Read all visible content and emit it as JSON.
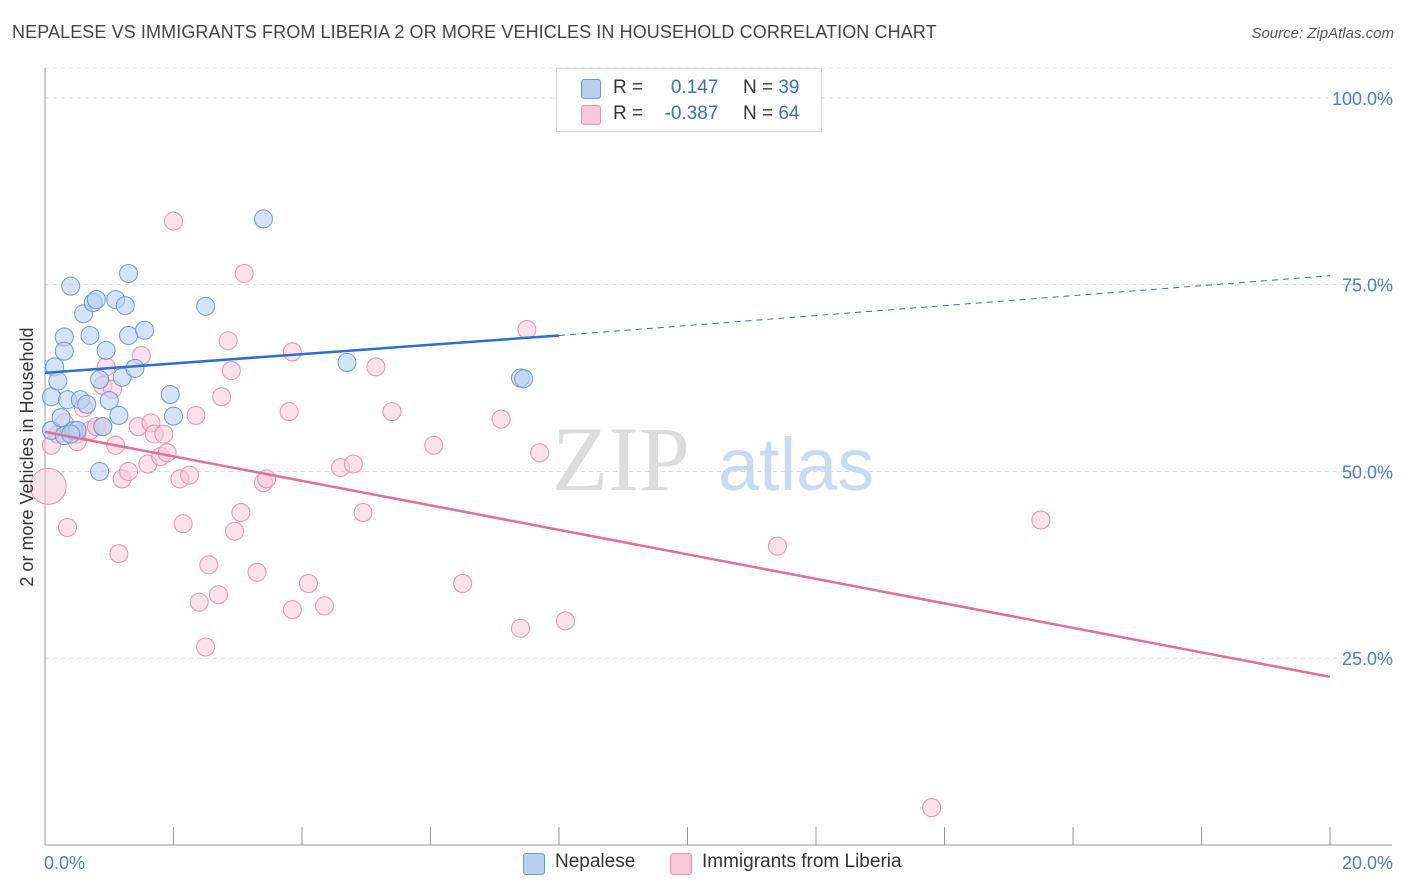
{
  "title": "NEPALESE VS IMMIGRANTS FROM LIBERIA 2 OR MORE VEHICLES IN HOUSEHOLD CORRELATION CHART",
  "source": "Source: ZipAtlas.com",
  "watermark": {
    "zip": "ZIP",
    "atlas": "atlas"
  },
  "legend_top": [
    {
      "r_label": "R =",
      "r_value": "0.147",
      "n_label": "N =",
      "n_value": "39"
    },
    {
      "r_label": "R =",
      "r_value": "-0.387",
      "n_label": "N =",
      "n_value": "64"
    }
  ],
  "legend_bottom": [
    "Nepalese",
    "Immigrants from Liberia"
  ],
  "colors": {
    "nepalese_fill": "#b8d0f0",
    "nepalese_stroke": "#6a9ad8",
    "nepalese_line": "#2e6fcc",
    "liberia_fill": "#f8c8d8",
    "liberia_stroke": "#e890b0",
    "liberia_line": "#e0709a",
    "tick_text": "#4a7fc7",
    "grid": "#d8d8d8"
  },
  "chart_data": {
    "type": "scatter",
    "title": "NEPALESE VS IMMIGRANTS FROM LIBERIA 2 OR MORE VEHICLES IN HOUSEHOLD CORRELATION CHART",
    "xlabel": "",
    "ylabel": "2 or more Vehicles in Household",
    "xlim": [
      0,
      20
    ],
    "ylim": [
      0,
      104
    ],
    "x_tick_labels": [
      "0.0%",
      "20.0%"
    ],
    "y_ticks": [
      25,
      50,
      75,
      100
    ],
    "y_tick_labels": [
      "25.0%",
      "50.0%",
      "75.0%",
      "100.0%"
    ],
    "grid": "horizontal dashed",
    "legend_placement": "top-center",
    "series": [
      {
        "name": "Nepalese",
        "r": 0.147,
        "n": 39,
        "trend": {
          "x": [
            0.0,
            8.0
          ],
          "y": [
            63.2,
            68.2
          ],
          "extended_to": [
            20.0,
            76.2
          ]
        },
        "points": [
          [
            0.1,
            55.5
          ],
          [
            0.1,
            60.0
          ],
          [
            0.15,
            64.0
          ],
          [
            0.2,
            62.1
          ],
          [
            0.25,
            57.2
          ],
          [
            0.3,
            54.8
          ],
          [
            0.3,
            68.0
          ],
          [
            0.3,
            66.1
          ],
          [
            0.35,
            59.6
          ],
          [
            0.4,
            74.8
          ],
          [
            0.45,
            55.5
          ],
          [
            0.5,
            55.5
          ],
          [
            0.55,
            59.6
          ],
          [
            0.6,
            71.1
          ],
          [
            0.65,
            59.0
          ],
          [
            0.7,
            68.2
          ],
          [
            0.75,
            72.6
          ],
          [
            0.8,
            73.0
          ],
          [
            0.85,
            62.3
          ],
          [
            0.85,
            50.0
          ],
          [
            0.9,
            56.0
          ],
          [
            0.95,
            66.2
          ],
          [
            1.0,
            59.5
          ],
          [
            1.1,
            73.0
          ],
          [
            1.15,
            57.5
          ],
          [
            1.2,
            62.6
          ],
          [
            1.25,
            72.2
          ],
          [
            1.3,
            68.2
          ],
          [
            1.3,
            76.5
          ],
          [
            1.4,
            63.8
          ],
          [
            1.55,
            68.9
          ],
          [
            1.95,
            60.3
          ],
          [
            2.0,
            57.4
          ],
          [
            2.5,
            72.1
          ],
          [
            3.4,
            83.8
          ],
          [
            4.7,
            64.6
          ],
          [
            7.4,
            62.5
          ],
          [
            7.45,
            62.4
          ],
          [
            0.4,
            55.0
          ]
        ]
      },
      {
        "name": "Immigrants from Liberia",
        "r": -0.387,
        "n": 64,
        "trend": {
          "x": [
            0.0,
            20.0
          ],
          "y": [
            55.3,
            22.5
          ]
        },
        "points": [
          [
            0.05,
            48.0
          ],
          [
            0.1,
            53.5
          ],
          [
            0.2,
            55.0
          ],
          [
            0.3,
            56.5
          ],
          [
            0.35,
            42.5
          ],
          [
            0.5,
            55.0
          ],
          [
            0.5,
            54.0
          ],
          [
            0.6,
            58.5
          ],
          [
            0.7,
            55.5
          ],
          [
            0.8,
            56.0
          ],
          [
            0.9,
            61.5
          ],
          [
            0.9,
            56.0
          ],
          [
            0.95,
            64.0
          ],
          [
            1.05,
            61.0
          ],
          [
            1.1,
            53.5
          ],
          [
            1.15,
            39.0
          ],
          [
            1.2,
            49.0
          ],
          [
            1.3,
            50.0
          ],
          [
            1.45,
            56.0
          ],
          [
            1.5,
            65.5
          ],
          [
            1.6,
            51.0
          ],
          [
            1.65,
            56.5
          ],
          [
            1.7,
            55.0
          ],
          [
            1.8,
            52.0
          ],
          [
            1.85,
            55.0
          ],
          [
            1.9,
            52.5
          ],
          [
            2.0,
            83.5
          ],
          [
            2.1,
            49.0
          ],
          [
            2.15,
            43.0
          ],
          [
            2.25,
            49.5
          ],
          [
            2.35,
            57.5
          ],
          [
            2.4,
            32.5
          ],
          [
            2.5,
            26.5
          ],
          [
            2.55,
            37.5
          ],
          [
            2.7,
            33.5
          ],
          [
            2.75,
            60.0
          ],
          [
            2.85,
            67.5
          ],
          [
            2.9,
            63.5
          ],
          [
            2.95,
            42.0
          ],
          [
            3.05,
            44.5
          ],
          [
            3.1,
            76.5
          ],
          [
            3.3,
            36.5
          ],
          [
            3.4,
            48.5
          ],
          [
            3.45,
            49.0
          ],
          [
            3.8,
            58.0
          ],
          [
            3.85,
            66.0
          ],
          [
            3.85,
            31.5
          ],
          [
            4.1,
            35.0
          ],
          [
            4.35,
            32.0
          ],
          [
            4.6,
            50.5
          ],
          [
            4.8,
            51.0
          ],
          [
            4.95,
            44.5
          ],
          [
            5.15,
            64.0
          ],
          [
            5.4,
            58.0
          ],
          [
            6.05,
            53.5
          ],
          [
            6.5,
            35.0
          ],
          [
            7.1,
            57.0
          ],
          [
            7.4,
            29.0
          ],
          [
            7.5,
            69.0
          ],
          [
            7.7,
            52.5
          ],
          [
            8.1,
            30.0
          ],
          [
            11.4,
            40.0
          ],
          [
            13.8,
            5.0
          ],
          [
            15.5,
            43.5
          ]
        ]
      }
    ]
  }
}
